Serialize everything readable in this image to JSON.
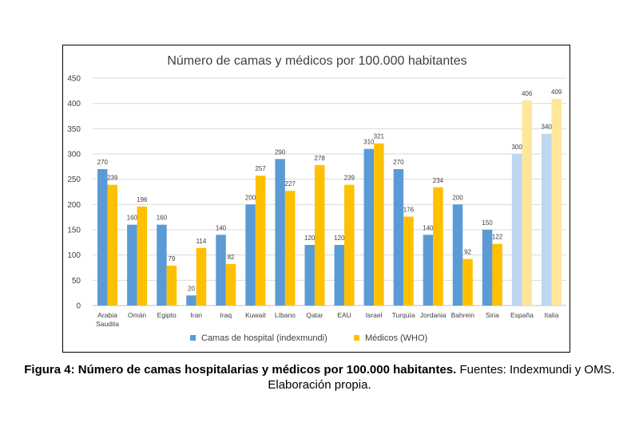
{
  "chart_data": {
    "type": "bar",
    "title": "Número de camas y médicos por 100.000 habitantes",
    "categories": [
      "Arabia Saudita",
      "Omán",
      "Egipto",
      "Iran",
      "Iraq",
      "Kuwait",
      "Líbano",
      "Qatar",
      "EAU",
      "Israel",
      "Turquía",
      "Jordania",
      "Bahrein",
      "Siria",
      "España",
      "Italia"
    ],
    "category_lines": [
      [
        "Arabia",
        "Saudita"
      ],
      [
        "Omán"
      ],
      [
        "Egipto"
      ],
      [
        "Iran"
      ],
      [
        "Iraq"
      ],
      [
        "Kuwait"
      ],
      [
        "Líbano"
      ],
      [
        "Qatar"
      ],
      [
        "EAU"
      ],
      [
        "Israel"
      ],
      [
        "Turquía"
      ],
      [
        "Jordania"
      ],
      [
        "Bahrein"
      ],
      [
        "Siria"
      ],
      [
        "España"
      ],
      [
        "Italia"
      ]
    ],
    "series": [
      {
        "name": "Camas de hospital  (indexmundi)",
        "color": "#5b9bd5",
        "light_color": "#bdd7ee",
        "values": [
          270,
          160,
          160,
          20,
          140,
          200,
          290,
          120,
          120,
          310,
          270,
          140,
          200,
          150,
          300,
          340
        ]
      },
      {
        "name": "Médicos  (WHO)",
        "color": "#ffc000",
        "light_color": "#ffe699",
        "values": [
          239,
          196,
          79,
          114,
          82,
          257,
          227,
          278,
          239,
          321,
          176,
          234,
          92,
          122,
          406,
          409
        ]
      }
    ],
    "highlight_light_categories": [
      "España",
      "Italia"
    ],
    "ylim": [
      0,
      450
    ],
    "yticks": [
      0,
      50,
      100,
      150,
      200,
      250,
      300,
      350,
      400,
      450
    ],
    "grid": true,
    "legend_position": "bottom"
  },
  "caption": {
    "bold": "Figura 4: Número de camas hospitalarias y médicos por 100.000 habitantes.",
    "normal": " Fuentes: Indexmundi y OMS. Elaboración propia."
  }
}
